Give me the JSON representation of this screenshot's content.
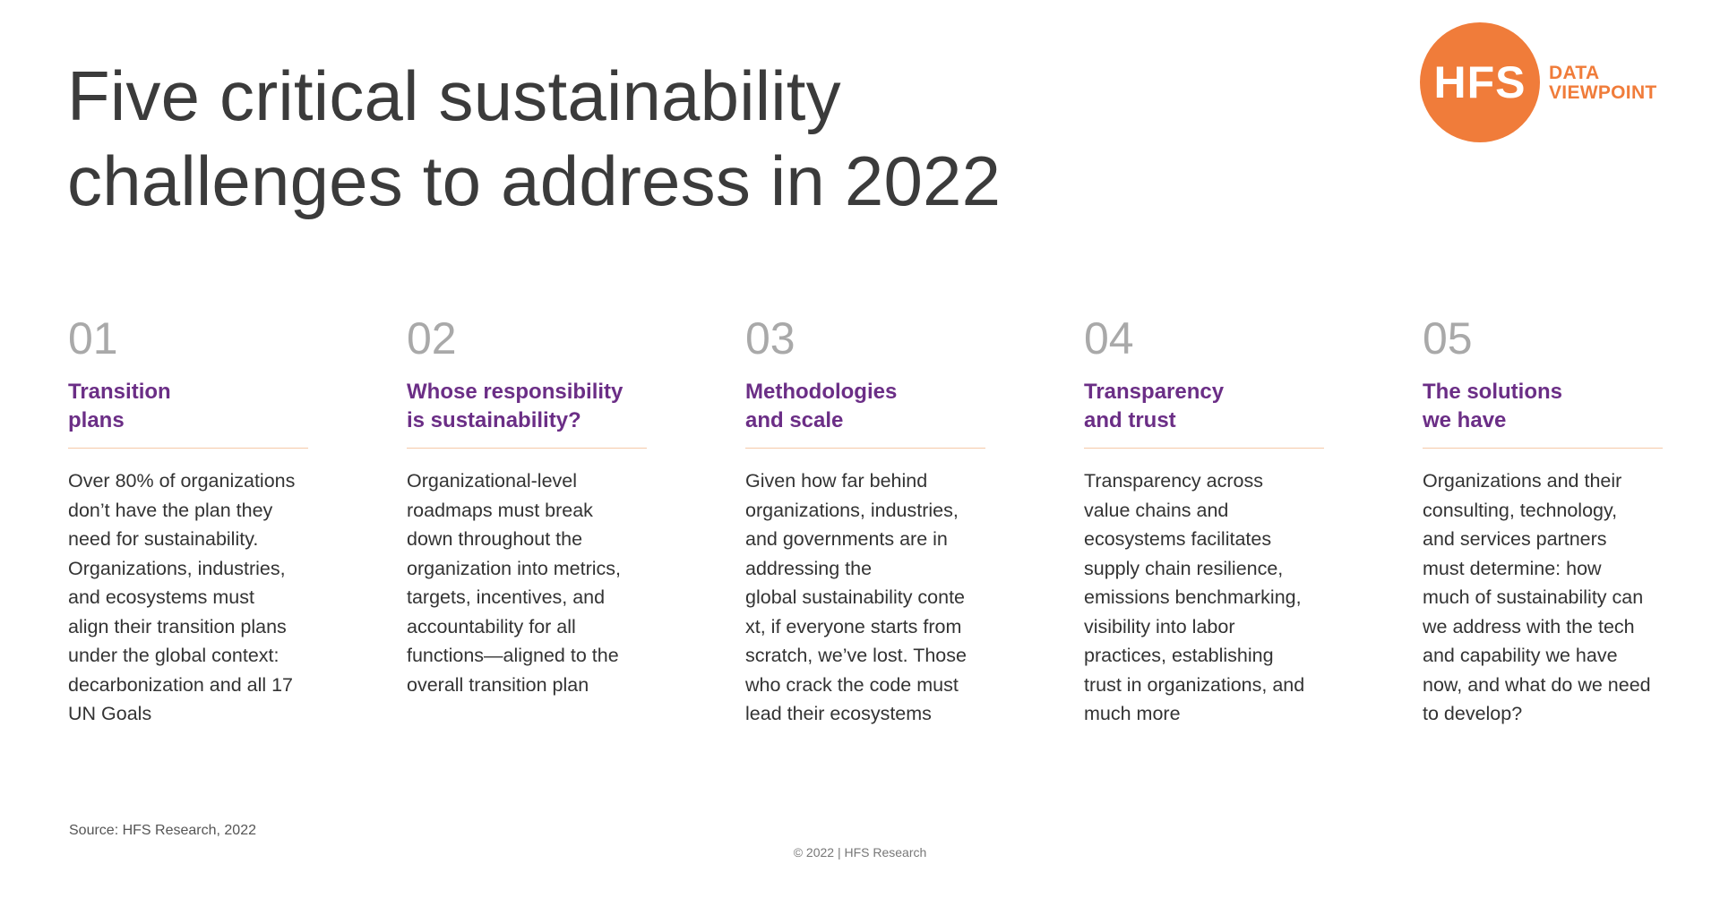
{
  "title": {
    "line1": "Five critical sustainability",
    "line2": "challenges to address in 2022"
  },
  "logo": {
    "mark": "HFS",
    "line1": "DATA",
    "line2": "VIEWPOINT",
    "color": "#f07c3a"
  },
  "accent_color": "#6b2e86",
  "columns": [
    {
      "number": "01",
      "heading": [
        "Transition",
        "plans"
      ],
      "body": [
        "Over 80% of organizations",
        "don’t have the plan they",
        "need for sustainability.",
        "Organizations, industries,",
        "and ecosystems must",
        "align their transition plans",
        "under the global context:",
        "decarbonization and all 17",
        "UN Goals"
      ]
    },
    {
      "number": "02",
      "heading": [
        "Whose responsibility",
        "is sustainability?"
      ],
      "body": [
        "Organizational-level",
        "roadmaps must break",
        "down throughout the",
        "organization into metrics,",
        "targets, incentives, and",
        "accountability for all",
        "functions—aligned to the",
        "overall transition plan"
      ]
    },
    {
      "number": "03",
      "heading": [
        "Methodologies",
        "and scale"
      ],
      "body": [
        "Given how far behind",
        "organizations, industries,",
        "and governments are in",
        "addressing the",
        "global sustainability conte",
        "xt, if everyone starts from",
        "scratch, we’ve lost. Those",
        "who crack the code must",
        "lead their ecosystems"
      ]
    },
    {
      "number": "04",
      "heading": [
        "Transparency",
        "and trust"
      ],
      "body": [
        "Transparency across",
        "value chains and",
        "ecosystems facilitates",
        "supply chain resilience,",
        "emissions benchmarking,",
        "visibility into labor",
        "practices, establishing",
        "trust in organizations, and",
        "much more"
      ]
    },
    {
      "number": "05",
      "heading": [
        "The solutions",
        "we have"
      ],
      "body": [
        "Organizations and their",
        "consulting, technology,",
        "and services partners",
        "must determine: how",
        "much of sustainability can",
        "we address with the tech",
        "and capability we have",
        "now, and what do we need",
        "to develop?"
      ]
    }
  ],
  "source": "Source: HFS Research, 2022",
  "copyright": "© 2022 | HFS Research"
}
